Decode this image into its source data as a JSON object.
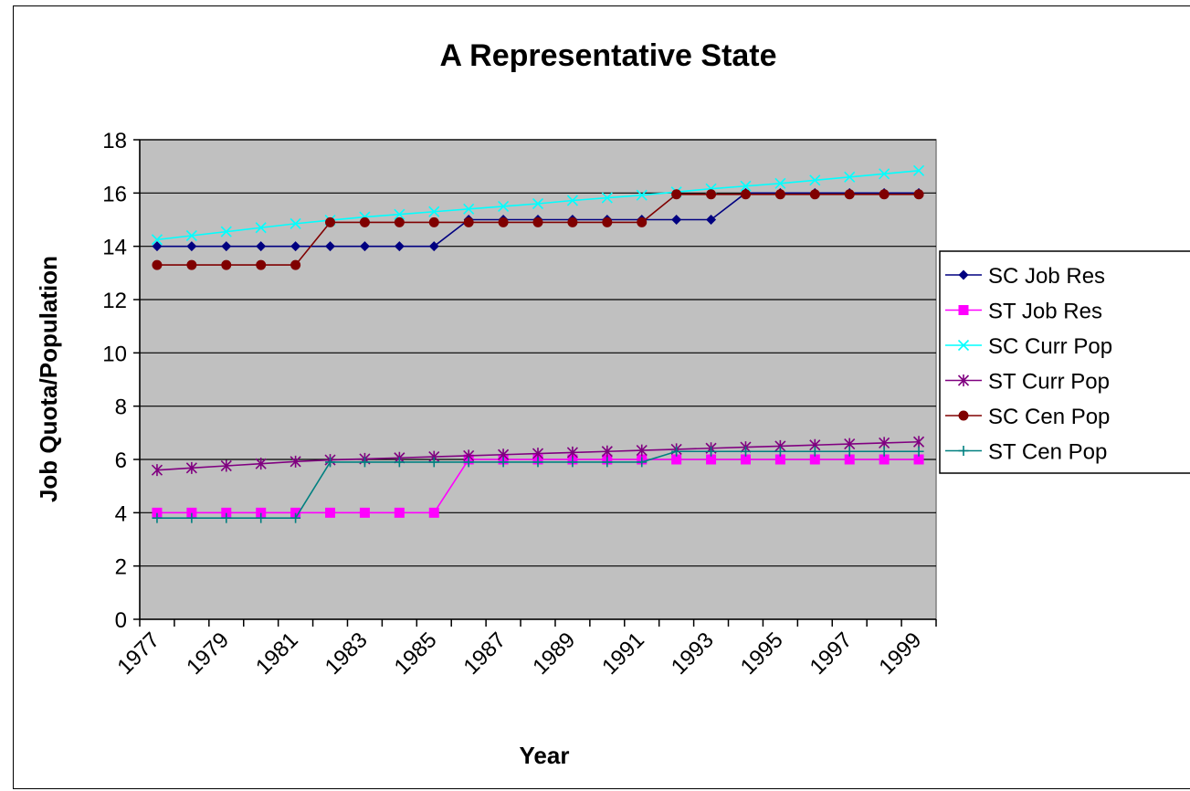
{
  "chart_data": {
    "type": "line",
    "title": "A Representative State",
    "xlabel": "Year",
    "ylabel": "Job Quota/Population",
    "ylim": [
      0,
      18
    ],
    "yticks": [
      0,
      2,
      4,
      6,
      8,
      10,
      12,
      14,
      16,
      18
    ],
    "x": [
      1977,
      1978,
      1979,
      1980,
      1981,
      1982,
      1983,
      1984,
      1985,
      1986,
      1987,
      1988,
      1989,
      1990,
      1991,
      1992,
      1993,
      1994,
      1995,
      1996,
      1997,
      1998,
      1999
    ],
    "xtick_labels": [
      "1977",
      "1979",
      "1981",
      "1983",
      "1985",
      "1987",
      "1989",
      "1991",
      "1993",
      "1995",
      "1997",
      "1999"
    ],
    "grid": "horizontal",
    "plot_background": "#c0c0c0",
    "legend_position": "right",
    "series": [
      {
        "name": "SC Job Res",
        "color": "#000080",
        "marker": "diamond",
        "values": [
          14,
          14,
          14,
          14,
          14,
          14,
          14,
          14,
          14,
          15,
          15,
          15,
          15,
          15,
          15,
          15,
          15,
          16,
          16,
          16,
          16,
          16,
          16
        ]
      },
      {
        "name": "ST Job Res",
        "color": "#ff00ff",
        "marker": "square",
        "values": [
          4,
          4,
          4,
          4,
          4,
          4,
          4,
          4,
          4,
          6,
          6,
          6,
          6,
          6,
          6,
          6,
          6,
          6,
          6,
          6,
          6,
          6,
          6
        ]
      },
      {
        "name": "SC Curr Pop",
        "color": "#00ffff",
        "marker": "x",
        "values": [
          14.25,
          14.4,
          14.55,
          14.7,
          14.85,
          14.98,
          15.1,
          15.2,
          15.3,
          15.4,
          15.5,
          15.6,
          15.72,
          15.82,
          15.92,
          16.04,
          16.16,
          16.26,
          16.36,
          16.48,
          16.6,
          16.72,
          16.84
        ]
      },
      {
        "name": "ST Curr Pop",
        "color": "#800080",
        "marker": "star",
        "values": [
          5.6,
          5.68,
          5.76,
          5.84,
          5.92,
          5.98,
          6.02,
          6.06,
          6.1,
          6.14,
          6.18,
          6.22,
          6.26,
          6.3,
          6.34,
          6.38,
          6.42,
          6.46,
          6.5,
          6.54,
          6.58,
          6.62,
          6.66
        ]
      },
      {
        "name": "SC Cen Pop",
        "color": "#800000",
        "marker": "circle",
        "values": [
          13.3,
          13.3,
          13.3,
          13.3,
          13.3,
          14.9,
          14.9,
          14.9,
          14.9,
          14.9,
          14.9,
          14.9,
          14.9,
          14.9,
          14.9,
          15.95,
          15.95,
          15.95,
          15.95,
          15.95,
          15.95,
          15.95,
          15.95
        ]
      },
      {
        "name": "ST Cen Pop",
        "color": "#008080",
        "marker": "plus",
        "values": [
          3.8,
          3.8,
          3.8,
          3.8,
          3.8,
          5.9,
          5.9,
          5.9,
          5.9,
          5.9,
          5.9,
          5.9,
          5.9,
          5.9,
          5.9,
          6.3,
          6.3,
          6.3,
          6.3,
          6.3,
          6.3,
          6.3,
          6.3
        ]
      }
    ]
  }
}
